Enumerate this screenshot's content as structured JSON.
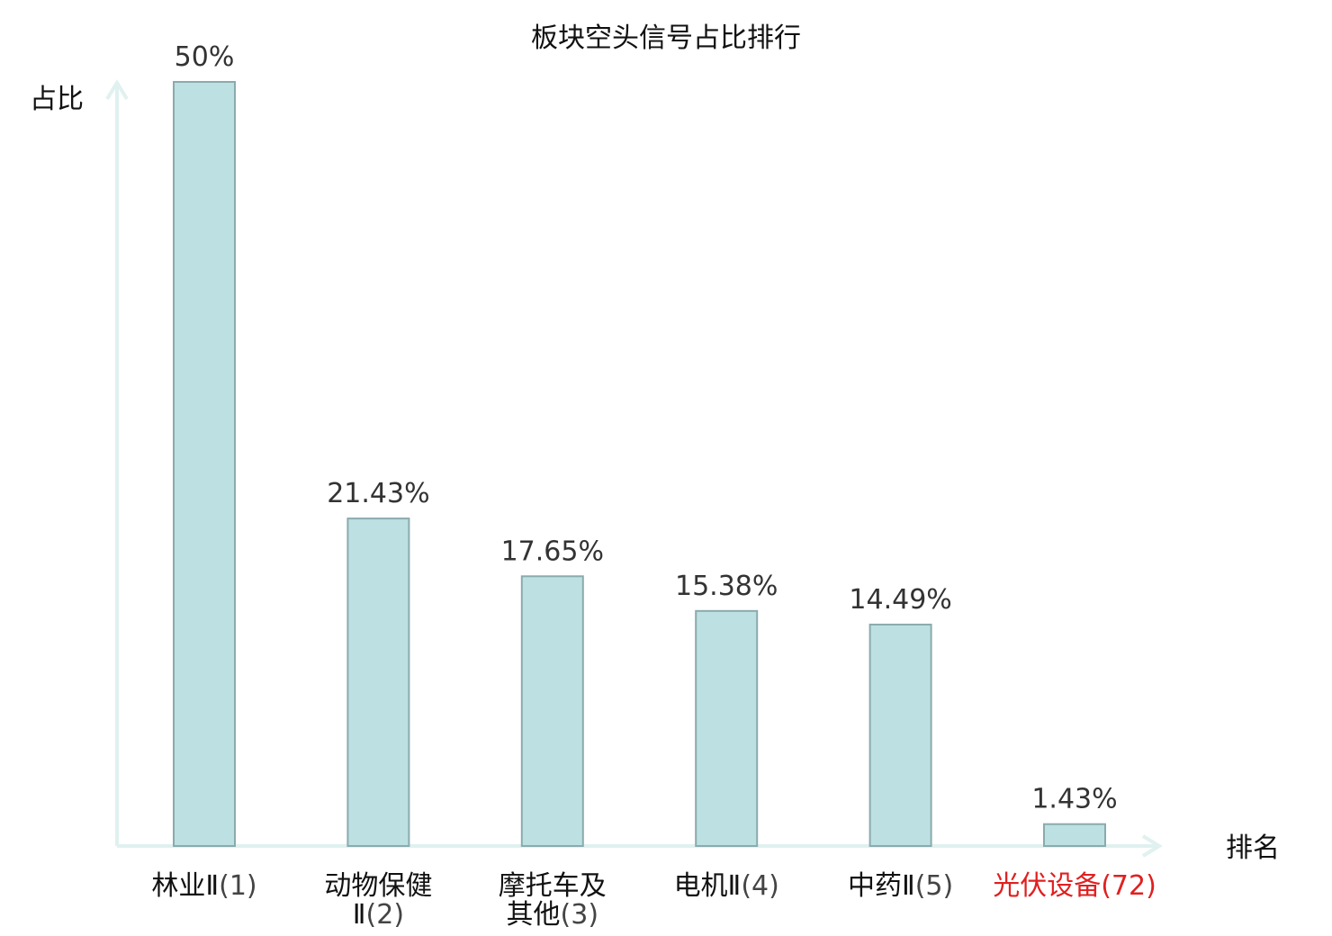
{
  "chart_data": {
    "type": "bar",
    "title": "板块空头信号占比排行",
    "ylabel": "占比",
    "xlabel": "排名",
    "ylim": [
      0,
      50
    ],
    "grid": false,
    "categories": [
      {
        "name_lines": [
          "林业Ⅱ"
        ],
        "rank": "(1)",
        "highlight": false
      },
      {
        "name_lines": [
          "动物保健",
          "Ⅱ"
        ],
        "rank": "(2)",
        "highlight": false
      },
      {
        "name_lines": [
          "摩托车及",
          "其他"
        ],
        "rank": "(3)",
        "highlight": false
      },
      {
        "name_lines": [
          "电机Ⅱ"
        ],
        "rank": "(4)",
        "highlight": false
      },
      {
        "name_lines": [
          "中药Ⅱ"
        ],
        "rank": "(5)",
        "highlight": false
      },
      {
        "name_lines": [
          "光伏设备"
        ],
        "rank": "(72)",
        "highlight": true
      }
    ],
    "values": [
      50,
      21.43,
      17.65,
      15.38,
      14.49,
      1.43
    ],
    "value_labels": [
      "50%",
      "21.43%",
      "17.65%",
      "15.38%",
      "14.49%",
      "1.43%"
    ],
    "colors": {
      "bar_fill": "#bde0e2",
      "bar_stroke": "#8aabae",
      "axis": "#e0f1ef",
      "highlight_text": "#e02020"
    }
  }
}
